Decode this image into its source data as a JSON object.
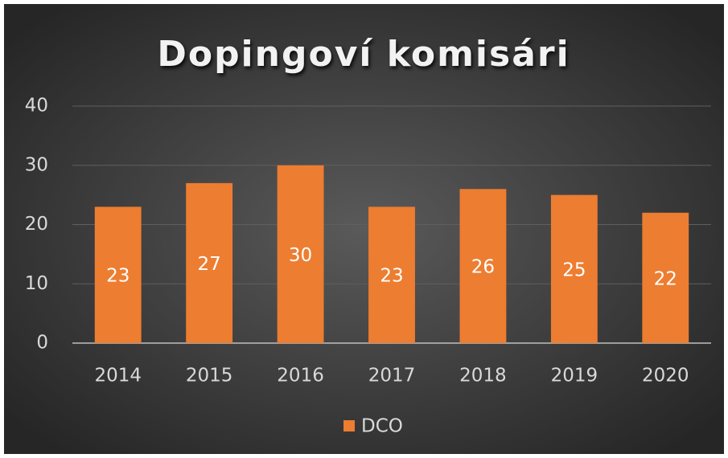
{
  "chart_data": {
    "type": "bar",
    "title": "Dopingoví komisári",
    "categories": [
      "2014",
      "2015",
      "2016",
      "2017",
      "2018",
      "2019",
      "2020"
    ],
    "series": [
      {
        "name": "DCO",
        "color": "#ed7d31",
        "values": [
          23,
          27,
          30,
          23,
          26,
          25,
          22
        ]
      }
    ],
    "ylim": [
      0,
      40
    ],
    "yticks": [
      0,
      10,
      20,
      30,
      40
    ],
    "grid": true,
    "legend": "bottom"
  }
}
